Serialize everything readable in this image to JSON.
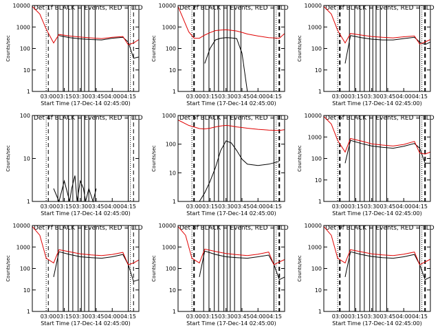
{
  "figure": {
    "black_color": "#000000",
    "red_color": "#e00000",
    "panels": [
      {
        "title": "Det 1f BLACK = Events, RED = LLD",
        "ylabel": "Counts/sec",
        "xlabel": "Start Time (17-Dec-14 02:45:00)",
        "yticks": [
          "1",
          "10",
          "100",
          "1000",
          "10000"
        ],
        "xticks": [
          "03:00",
          "03:15",
          "03:30",
          "03:45",
          "04:00",
          "04:15"
        ]
      },
      {
        "title": "Det 2f BLACK = Events, RED = LLD",
        "ylabel": "Counts/sec",
        "xlabel": "Start Time (17-Dec-14 02:45:00)",
        "yticks": [
          "1",
          "10",
          "100",
          "1000",
          "10000"
        ],
        "xticks": [
          "03:00",
          "03:15",
          "03:30",
          "03:45",
          "04:00",
          "04:15"
        ]
      },
      {
        "title": "Det 3f BLACK = Events, RED = LLD",
        "ylabel": "Counts/sec",
        "xlabel": "Start Time (17-Dec-14 02:45:00)",
        "yticks": [
          "1",
          "10",
          "100",
          "1000",
          "10000"
        ],
        "xticks": [
          "03:00",
          "03:15",
          "03:30",
          "03:45",
          "04:00",
          "04:15"
        ]
      },
      {
        "title": "Det 4f BLACK = Events, RED = LLD",
        "ylabel": "Counts/sec",
        "xlabel": "Start Time (17-Dec-14 02:45:00)",
        "yticks": [
          "1",
          "10",
          "100"
        ],
        "xticks": [
          "03:00",
          "03:15",
          "03:30",
          "03:45",
          "04:00",
          "04:15"
        ]
      },
      {
        "title": "Det 5f BLACK = Events, RED = LLD",
        "ylabel": "Counts/sec",
        "xlabel": "Start Time (17-Dec-14 02:45:00)",
        "yticks": [
          "1",
          "10",
          "100",
          "1000"
        ],
        "xticks": [
          "03:00",
          "03:15",
          "03:30",
          "03:45",
          "04:00",
          "04:15"
        ]
      },
      {
        "title": "Det 6f BLACK = Events, RED = LLD",
        "ylabel": "Counts/sec",
        "xlabel": "Start Time (17-Dec-14 02:45:00)",
        "yticks": [
          "1",
          "10",
          "100",
          "1000",
          "10000"
        ],
        "xticks": [
          "03:00",
          "03:15",
          "03:30",
          "03:45",
          "04:00",
          "04:15"
        ]
      },
      {
        "title": "Det 7f BLACK = Events, RED = LLD",
        "ylabel": "Counts/sec",
        "xlabel": "Start Time (17-Dec-14 02:45:00)",
        "yticks": [
          "1",
          "10",
          "100",
          "1000",
          "10000"
        ],
        "xticks": [
          "03:00",
          "03:15",
          "03:30",
          "03:45",
          "04:00",
          "04:15"
        ]
      },
      {
        "title": "Det 8f BLACK = Events, RED = LLD",
        "ylabel": "Counts/sec",
        "xlabel": "Start Time (17-Dec-14 02:45:00)",
        "yticks": [
          "1",
          "10",
          "100",
          "1000",
          "10000"
        ],
        "xticks": [
          "03:00",
          "03:15",
          "03:30",
          "03:45",
          "04:00",
          "04:15"
        ]
      },
      {
        "title": "Det 9f BLACK = Events, RED = LLD",
        "ylabel": "Counts/sec",
        "xlabel": "Start Time (17-Dec-14 02:45:00)",
        "yticks": [
          "1",
          "10",
          "100",
          "1000",
          "10000"
        ],
        "xticks": [
          "03:00",
          "03:15",
          "03:30",
          "03:45",
          "04:00",
          "04:15"
        ]
      }
    ]
  },
  "chart_data": [
    {
      "type": "line",
      "title": "Det 1f BLACK = Events, RED = LLD",
      "xlabel": "Start Time (17-Dec-14 02:45:00)",
      "ylabel": "Counts/sec",
      "yscale": "log",
      "ylim": [
        1,
        10000
      ],
      "xlim": [
        "02:45",
        "04:25"
      ],
      "x": [
        "02:45",
        "02:52",
        "02:58",
        "03:05",
        "03:10",
        "03:20",
        "03:30",
        "03:40",
        "03:50",
        "04:00",
        "04:10",
        "04:15",
        "04:20",
        "04:25"
      ],
      "series": [
        {
          "name": "BLACK = Events",
          "color": "#000000",
          "values": [
            null,
            null,
            null,
            null,
            400,
            320,
            280,
            260,
            250,
            300,
            330,
            200,
            35,
            40
          ]
        },
        {
          "name": "RED = LLD",
          "color": "#e00000",
          "values": [
            9000,
            4000,
            800,
            180,
            450,
            380,
            340,
            310,
            290,
            330,
            360,
            150,
            180,
            260
          ]
        }
      ],
      "vlines_dotted": [
        "02:58",
        "04:17"
      ],
      "vlines_dashed": [
        "03:00",
        "04:20"
      ],
      "vlines_solid": [
        "03:09",
        "03:14",
        "03:19",
        "03:23",
        "03:28",
        "03:31",
        "03:34",
        "03:38",
        "03:44",
        "04:15"
      ]
    },
    {
      "type": "line",
      "title": "Det 2f BLACK = Events, RED = LLD",
      "xlabel": "Start Time (17-Dec-14 02:45:00)",
      "ylabel": "Counts/sec",
      "yscale": "log",
      "ylim": [
        1,
        10000
      ],
      "xlim": [
        "02:45",
        "04:25"
      ],
      "x": [
        "02:45",
        "02:55",
        "03:00",
        "03:05",
        "03:10",
        "03:15",
        "03:20",
        "03:25",
        "03:30",
        "03:35",
        "03:40",
        "03:45",
        "03:50",
        "04:00",
        "04:10",
        "04:20",
        "04:25"
      ],
      "series": [
        {
          "name": "BLACK = Events",
          "color": "#000000",
          "values": [
            null,
            null,
            null,
            null,
            20,
            100,
            250,
            300,
            320,
            310,
            290,
            60,
            1,
            null,
            null,
            null,
            null
          ]
        },
        {
          "name": "RED = LLD",
          "color": "#e00000",
          "values": [
            9000,
            600,
            300,
            300,
            420,
            550,
            680,
            720,
            740,
            700,
            650,
            560,
            470,
            380,
            320,
            300,
            500
          ]
        }
      ],
      "vlines_dotted": [
        "02:58",
        "04:17"
      ],
      "vlines_dashed": [
        "03:00",
        "04:20"
      ],
      "vlines_solid": [
        "03:09",
        "03:14",
        "03:19",
        "03:23",
        "03:28",
        "03:31",
        "03:34",
        "03:38",
        "03:44",
        "04:15"
      ]
    },
    {
      "type": "line",
      "title": "Det 3f BLACK = Events, RED = LLD",
      "xlabel": "Start Time (17-Dec-14 02:45:00)",
      "ylabel": "Counts/sec",
      "yscale": "log",
      "ylim": [
        1,
        10000
      ],
      "xlim": [
        "02:45",
        "04:25"
      ],
      "x": [
        "02:45",
        "02:52",
        "02:58",
        "03:05",
        "03:10",
        "03:20",
        "03:30",
        "03:40",
        "03:50",
        "04:00",
        "04:10",
        "04:15",
        "04:20",
        "04:25"
      ],
      "series": [
        {
          "name": "BLACK = Events",
          "color": "#000000",
          "values": [
            null,
            null,
            null,
            20,
            400,
            320,
            270,
            250,
            250,
            290,
            330,
            200,
            150,
            200
          ]
        },
        {
          "name": "RED = LLD",
          "color": "#e00000",
          "values": [
            9000,
            4000,
            700,
            180,
            500,
            420,
            360,
            330,
            310,
            350,
            380,
            160,
            200,
            260
          ]
        }
      ],
      "vlines_dotted": [
        "02:58",
        "04:17"
      ],
      "vlines_dashed": [
        "03:00",
        "04:20"
      ],
      "vlines_solid": [
        "03:09",
        "03:14",
        "03:19",
        "03:23",
        "03:28",
        "03:31",
        "03:34",
        "03:38",
        "03:44",
        "04:15"
      ]
    },
    {
      "type": "line",
      "title": "Det 4f BLACK = Events, RED = LLD",
      "xlabel": "Start Time (17-Dec-14 02:45:00)",
      "ylabel": "Counts/sec",
      "yscale": "log",
      "ylim": [
        1,
        100
      ],
      "xlim": [
        "02:45",
        "04:25"
      ],
      "x": [
        "03:05",
        "03:10",
        "03:15",
        "03:20",
        "03:22",
        "03:25",
        "03:27",
        "03:30",
        "03:33",
        "03:35",
        "03:38",
        "03:42",
        "03:45"
      ],
      "series": [
        {
          "name": "BLACK = Events",
          "color": "#000000",
          "values": [
            2,
            1,
            3,
            1,
            2,
            4,
            1,
            3,
            2,
            1,
            2,
            1,
            2
          ]
        }
      ],
      "vlines_dotted": [
        "02:58",
        "04:17"
      ],
      "vlines_dashed": [
        "03:00",
        "04:20"
      ],
      "vlines_solid": [
        "03:09",
        "03:14",
        "03:19",
        "03:23",
        "03:28",
        "03:31",
        "03:34",
        "03:38",
        "03:44",
        "04:15"
      ]
    },
    {
      "type": "line",
      "title": "Det 5f BLACK = Events, RED = LLD",
      "xlabel": "Start Time (17-Dec-14 02:45:00)",
      "ylabel": "Counts/sec",
      "yscale": "log",
      "ylim": [
        1,
        1000
      ],
      "xlim": [
        "02:45",
        "04:25"
      ],
      "x": [
        "02:45",
        "02:55",
        "03:05",
        "03:10",
        "03:15",
        "03:20",
        "03:25",
        "03:30",
        "03:35",
        "03:40",
        "03:45",
        "03:50",
        "04:00",
        "04:10",
        "04:20",
        "04:25"
      ],
      "series": [
        {
          "name": "BLACK = Events",
          "color": "#000000",
          "values": [
            null,
            null,
            1,
            2,
            5,
            15,
            60,
            130,
            110,
            60,
            30,
            20,
            18,
            20,
            25,
            null
          ]
        },
        {
          "name": "RED = LLD",
          "color": "#e00000",
          "values": [
            700,
            450,
            350,
            340,
            360,
            400,
            430,
            450,
            430,
            400,
            380,
            360,
            330,
            310,
            300,
            320
          ]
        }
      ],
      "vlines_dotted": [
        "02:58",
        "04:17"
      ],
      "vlines_dashed": [
        "03:00",
        "04:20"
      ],
      "vlines_solid": [
        "03:09",
        "03:14",
        "03:19",
        "03:23",
        "03:28",
        "03:31",
        "03:34",
        "03:38",
        "03:44",
        "04:15"
      ]
    },
    {
      "type": "line",
      "title": "Det 6f BLACK = Events, RED = LLD",
      "xlabel": "Start Time (17-Dec-14 02:45:00)",
      "ylabel": "Counts/sec",
      "yscale": "log",
      "ylim": [
        1,
        10000
      ],
      "xlim": [
        "02:45",
        "04:25"
      ],
      "x": [
        "02:45",
        "02:52",
        "02:58",
        "03:05",
        "03:10",
        "03:20",
        "03:30",
        "03:40",
        "03:50",
        "04:00",
        "04:10",
        "04:15",
        "04:20",
        "04:25"
      ],
      "series": [
        {
          "name": "BLACK = Events",
          "color": "#000000",
          "values": [
            null,
            null,
            null,
            60,
            700,
            500,
            380,
            330,
            300,
            370,
            500,
            300,
            60,
            60
          ]
        },
        {
          "name": "RED = LLD",
          "color": "#e00000",
          "values": [
            9000,
            4000,
            700,
            200,
            850,
            650,
            480,
            420,
            380,
            450,
            620,
            180,
            160,
            200
          ]
        }
      ],
      "vlines_dotted": [
        "02:58",
        "04:17"
      ],
      "vlines_dashed": [
        "03:00",
        "04:20"
      ],
      "vlines_solid": [
        "03:09",
        "03:14",
        "03:19",
        "03:23",
        "03:28",
        "03:31",
        "03:34",
        "03:38",
        "03:44",
        "04:15"
      ]
    },
    {
      "type": "line",
      "title": "Det 7f BLACK = Events, RED = LLD",
      "xlabel": "Start Time (17-Dec-14 02:45:00)",
      "ylabel": "Counts/sec",
      "yscale": "log",
      "ylim": [
        1,
        10000
      ],
      "xlim": [
        "02:45",
        "04:25"
      ],
      "x": [
        "02:45",
        "02:52",
        "02:58",
        "03:05",
        "03:10",
        "03:20",
        "03:30",
        "03:40",
        "03:50",
        "04:00",
        "04:10",
        "04:15",
        "04:20",
        "04:25"
      ],
      "series": [
        {
          "name": "BLACK = Events",
          "color": "#000000",
          "values": [
            null,
            null,
            null,
            40,
            600,
            450,
            350,
            320,
            300,
            350,
            450,
            150,
            25,
            30
          ]
        },
        {
          "name": "RED = LLD",
          "color": "#e00000",
          "values": [
            9000,
            3500,
            300,
            180,
            750,
            600,
            480,
            430,
            400,
            450,
            560,
            150,
            180,
            250
          ]
        }
      ],
      "vlines_dotted": [
        "02:58",
        "04:17"
      ],
      "vlines_dashed": [
        "03:00",
        "04:20"
      ],
      "vlines_solid": [
        "03:09",
        "03:14",
        "03:19",
        "03:23",
        "03:28",
        "03:31",
        "03:34",
        "03:38",
        "03:44",
        "04:15"
      ]
    },
    {
      "type": "line",
      "title": "Det 8f BLACK = Events, RED = LLD",
      "xlabel": "Start Time (17-Dec-14 02:45:00)",
      "ylabel": "Counts/sec",
      "yscale": "log",
      "ylim": [
        1,
        10000
      ],
      "xlim": [
        "02:45",
        "04:25"
      ],
      "x": [
        "02:45",
        "02:52",
        "02:58",
        "03:05",
        "03:10",
        "03:20",
        "03:30",
        "03:40",
        "03:50",
        "04:00",
        "04:10",
        "04:15",
        "04:20",
        "04:25"
      ],
      "series": [
        {
          "name": "BLACK = Events",
          "color": "#000000",
          "values": [
            null,
            null,
            null,
            40,
            650,
            450,
            350,
            320,
            300,
            350,
            420,
            150,
            30,
            40
          ]
        },
        {
          "name": "RED = LLD",
          "color": "#e00000",
          "values": [
            9000,
            3500,
            300,
            180,
            800,
            620,
            500,
            440,
            400,
            460,
            580,
            150,
            200,
            260
          ]
        }
      ],
      "vlines_dotted": [
        "02:58",
        "04:17"
      ],
      "vlines_dashed": [
        "03:00",
        "04:20"
      ],
      "vlines_solid": [
        "03:09",
        "03:14",
        "03:19",
        "03:23",
        "03:28",
        "03:31",
        "03:34",
        "03:38",
        "03:44",
        "04:15"
      ]
    },
    {
      "type": "line",
      "title": "Det 9f BLACK = Events, RED = LLD",
      "xlabel": "Start Time (17-Dec-14 02:45:00)",
      "ylabel": "Counts/sec",
      "yscale": "log",
      "ylim": [
        1,
        10000
      ],
      "xlim": [
        "02:45",
        "04:25"
      ],
      "x": [
        "02:45",
        "02:52",
        "02:58",
        "03:05",
        "03:10",
        "03:20",
        "03:30",
        "03:40",
        "03:50",
        "04:00",
        "04:10",
        "04:15",
        "04:20",
        "04:25"
      ],
      "series": [
        {
          "name": "BLACK = Events",
          "color": "#000000",
          "values": [
            null,
            null,
            null,
            40,
            600,
            450,
            360,
            320,
            300,
            350,
            450,
            150,
            30,
            40
          ]
        },
        {
          "name": "RED = LLD",
          "color": "#e00000",
          "values": [
            9000,
            3500,
            300,
            180,
            750,
            600,
            480,
            430,
            400,
            460,
            580,
            150,
            200,
            270
          ]
        }
      ],
      "vlines_dotted": [
        "02:58",
        "04:17"
      ],
      "vlines_dashed": [
        "03:00",
        "04:20"
      ],
      "vlines_solid": [
        "03:09",
        "03:14",
        "03:19",
        "03:23",
        "03:28",
        "03:31",
        "03:34",
        "03:38",
        "03:44",
        "04:15"
      ]
    }
  ]
}
